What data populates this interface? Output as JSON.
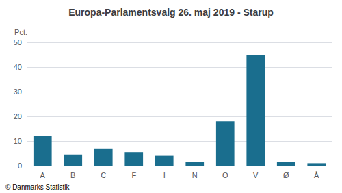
{
  "chart_data": {
    "type": "bar",
    "title": "Europa-Parlamentsvalg 26. maj 2019 - Starup",
    "categories": [
      "A",
      "B",
      "C",
      "F",
      "I",
      "N",
      "O",
      "V",
      "Ø",
      "Å"
    ],
    "values": [
      12,
      4.5,
      7,
      5.5,
      4,
      1.5,
      18,
      45,
      1.5,
      1
    ],
    "color": "#1a6e8e",
    "ylabel": "Pct.",
    "ylim": [
      0,
      50
    ],
    "yticks": [
      0,
      10,
      20,
      30,
      40,
      50
    ],
    "grid": true,
    "annotations": [
      "© Danmarks Statistik"
    ]
  }
}
